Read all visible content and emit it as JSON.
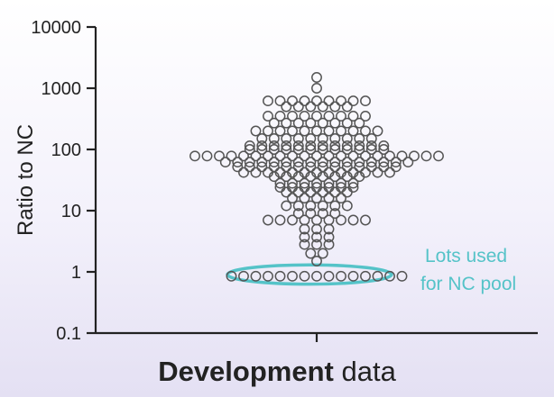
{
  "chart_data": {
    "type": "scatter",
    "title": "",
    "ylabel": "Ratio to NC",
    "xlabel_bold": "Development",
    "xlabel_rest": " data",
    "yscale": "log",
    "ylim": [
      0.1,
      10000
    ],
    "yticks": [
      "0.1",
      "1",
      "10",
      "100",
      "1000",
      "10000"
    ],
    "grid": false,
    "marker": "open-circle",
    "marker_color": "#555555",
    "highlight_color": "#55c3c8",
    "highlight_range": [
      0.63,
      1.3
    ],
    "annotation": [
      "Lots used",
      "for NC pool"
    ],
    "rows": [
      {
        "y": 1500,
        "count": 1
      },
      {
        "y": 1000,
        "count": 1
      },
      {
        "y": 620,
        "count": 9
      },
      {
        "y": 500,
        "count": 6
      },
      {
        "y": 350,
        "count": 9
      },
      {
        "y": 270,
        "count": 8
      },
      {
        "y": 200,
        "count": 11
      },
      {
        "y": 150,
        "count": 10
      },
      {
        "y": 115,
        "count": 12
      },
      {
        "y": 100,
        "count": 12
      },
      {
        "y": 78,
        "count": 21
      },
      {
        "y": 62,
        "count": 16
      },
      {
        "y": 52,
        "count": 14
      },
      {
        "y": 42,
        "count": 13
      },
      {
        "y": 36,
        "count": 8
      },
      {
        "y": 28,
        "count": 7
      },
      {
        "y": 24,
        "count": 7
      },
      {
        "y": 20,
        "count": 6
      },
      {
        "y": 16,
        "count": 5
      },
      {
        "y": 12,
        "count": 6
      },
      {
        "y": 9,
        "count": 4
      },
      {
        "y": 7,
        "count": 9
      },
      {
        "y": 5,
        "count": 3
      },
      {
        "y": 3.7,
        "count": 3
      },
      {
        "y": 2.8,
        "count": 3
      },
      {
        "y": 2,
        "count": 2
      },
      {
        "y": 1.5,
        "count": 1
      },
      {
        "y": 0.85,
        "count": 15
      }
    ]
  }
}
